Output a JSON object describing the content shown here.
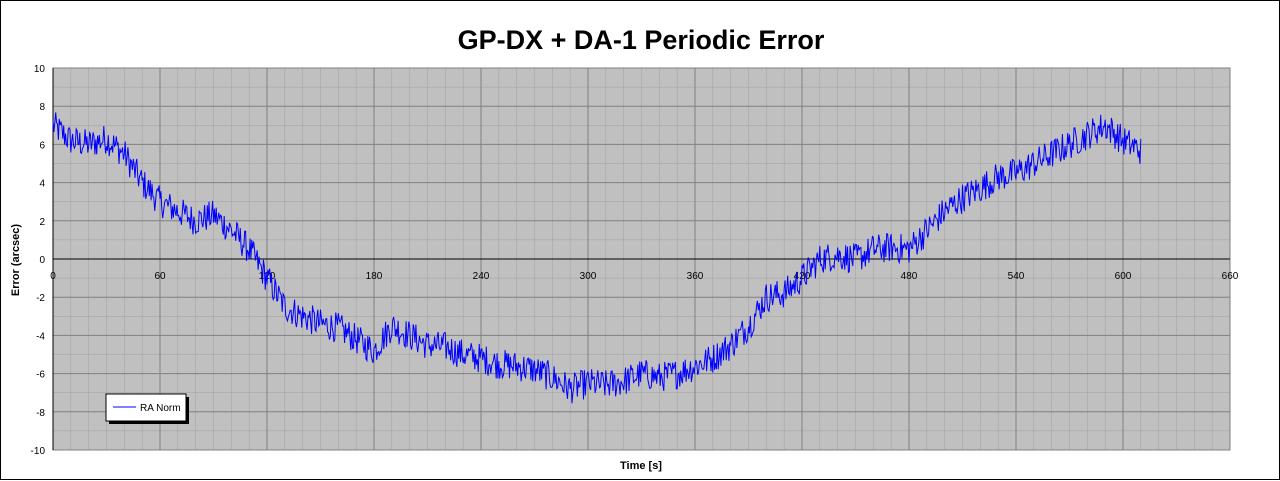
{
  "chart_data": {
    "type": "line",
    "title": "GP-DX + DA-1 Periodic Error",
    "xlabel": "Time [s]",
    "ylabel": "Error (arcsec)",
    "xlim": [
      0,
      660
    ],
    "ylim": [
      -10,
      10
    ],
    "x_ticks": [
      0,
      60,
      120,
      180,
      240,
      300,
      360,
      420,
      480,
      540,
      600,
      660
    ],
    "y_ticks": [
      10,
      8,
      6,
      4,
      2,
      0,
      -2,
      -4,
      -6,
      -8,
      -10
    ],
    "grid": true,
    "legend_position": "bottom-left",
    "colors": {
      "plot_bg": "#c0c0c0",
      "series": "#0000ff",
      "grid": "#808080"
    },
    "series": [
      {
        "name": "RA Norm",
        "x": [
          0,
          10,
          20,
          30,
          40,
          50,
          60,
          70,
          80,
          90,
          100,
          110,
          120,
          130,
          140,
          150,
          160,
          170,
          180,
          190,
          200,
          210,
          220,
          230,
          240,
          250,
          260,
          270,
          280,
          290,
          300,
          310,
          320,
          330,
          340,
          350,
          360,
          370,
          380,
          390,
          400,
          410,
          420,
          430,
          440,
          450,
          460,
          470,
          480,
          490,
          500,
          510,
          520,
          530,
          540,
          550,
          560,
          570,
          580,
          590,
          600,
          610
        ],
        "y": [
          7.0,
          6.2,
          6.0,
          6.3,
          5.5,
          4.0,
          3.0,
          2.5,
          2.0,
          2.3,
          1.5,
          0.5,
          -1.0,
          -2.5,
          -3.0,
          -3.4,
          -3.6,
          -4.2,
          -4.8,
          -3.5,
          -4.0,
          -4.5,
          -4.6,
          -5.0,
          -5.2,
          -5.5,
          -5.6,
          -5.8,
          -6.2,
          -6.8,
          -6.5,
          -6.6,
          -6.4,
          -6.0,
          -6.2,
          -6.0,
          -5.6,
          -5.2,
          -4.5,
          -3.5,
          -2.0,
          -1.8,
          -1.0,
          0.0,
          0.2,
          0.0,
          0.5,
          0.6,
          0.5,
          1.5,
          2.5,
          3.2,
          3.7,
          4.3,
          4.5,
          5.0,
          5.5,
          6.0,
          6.5,
          7.0,
          6.2,
          5.7
        ]
      }
    ]
  }
}
